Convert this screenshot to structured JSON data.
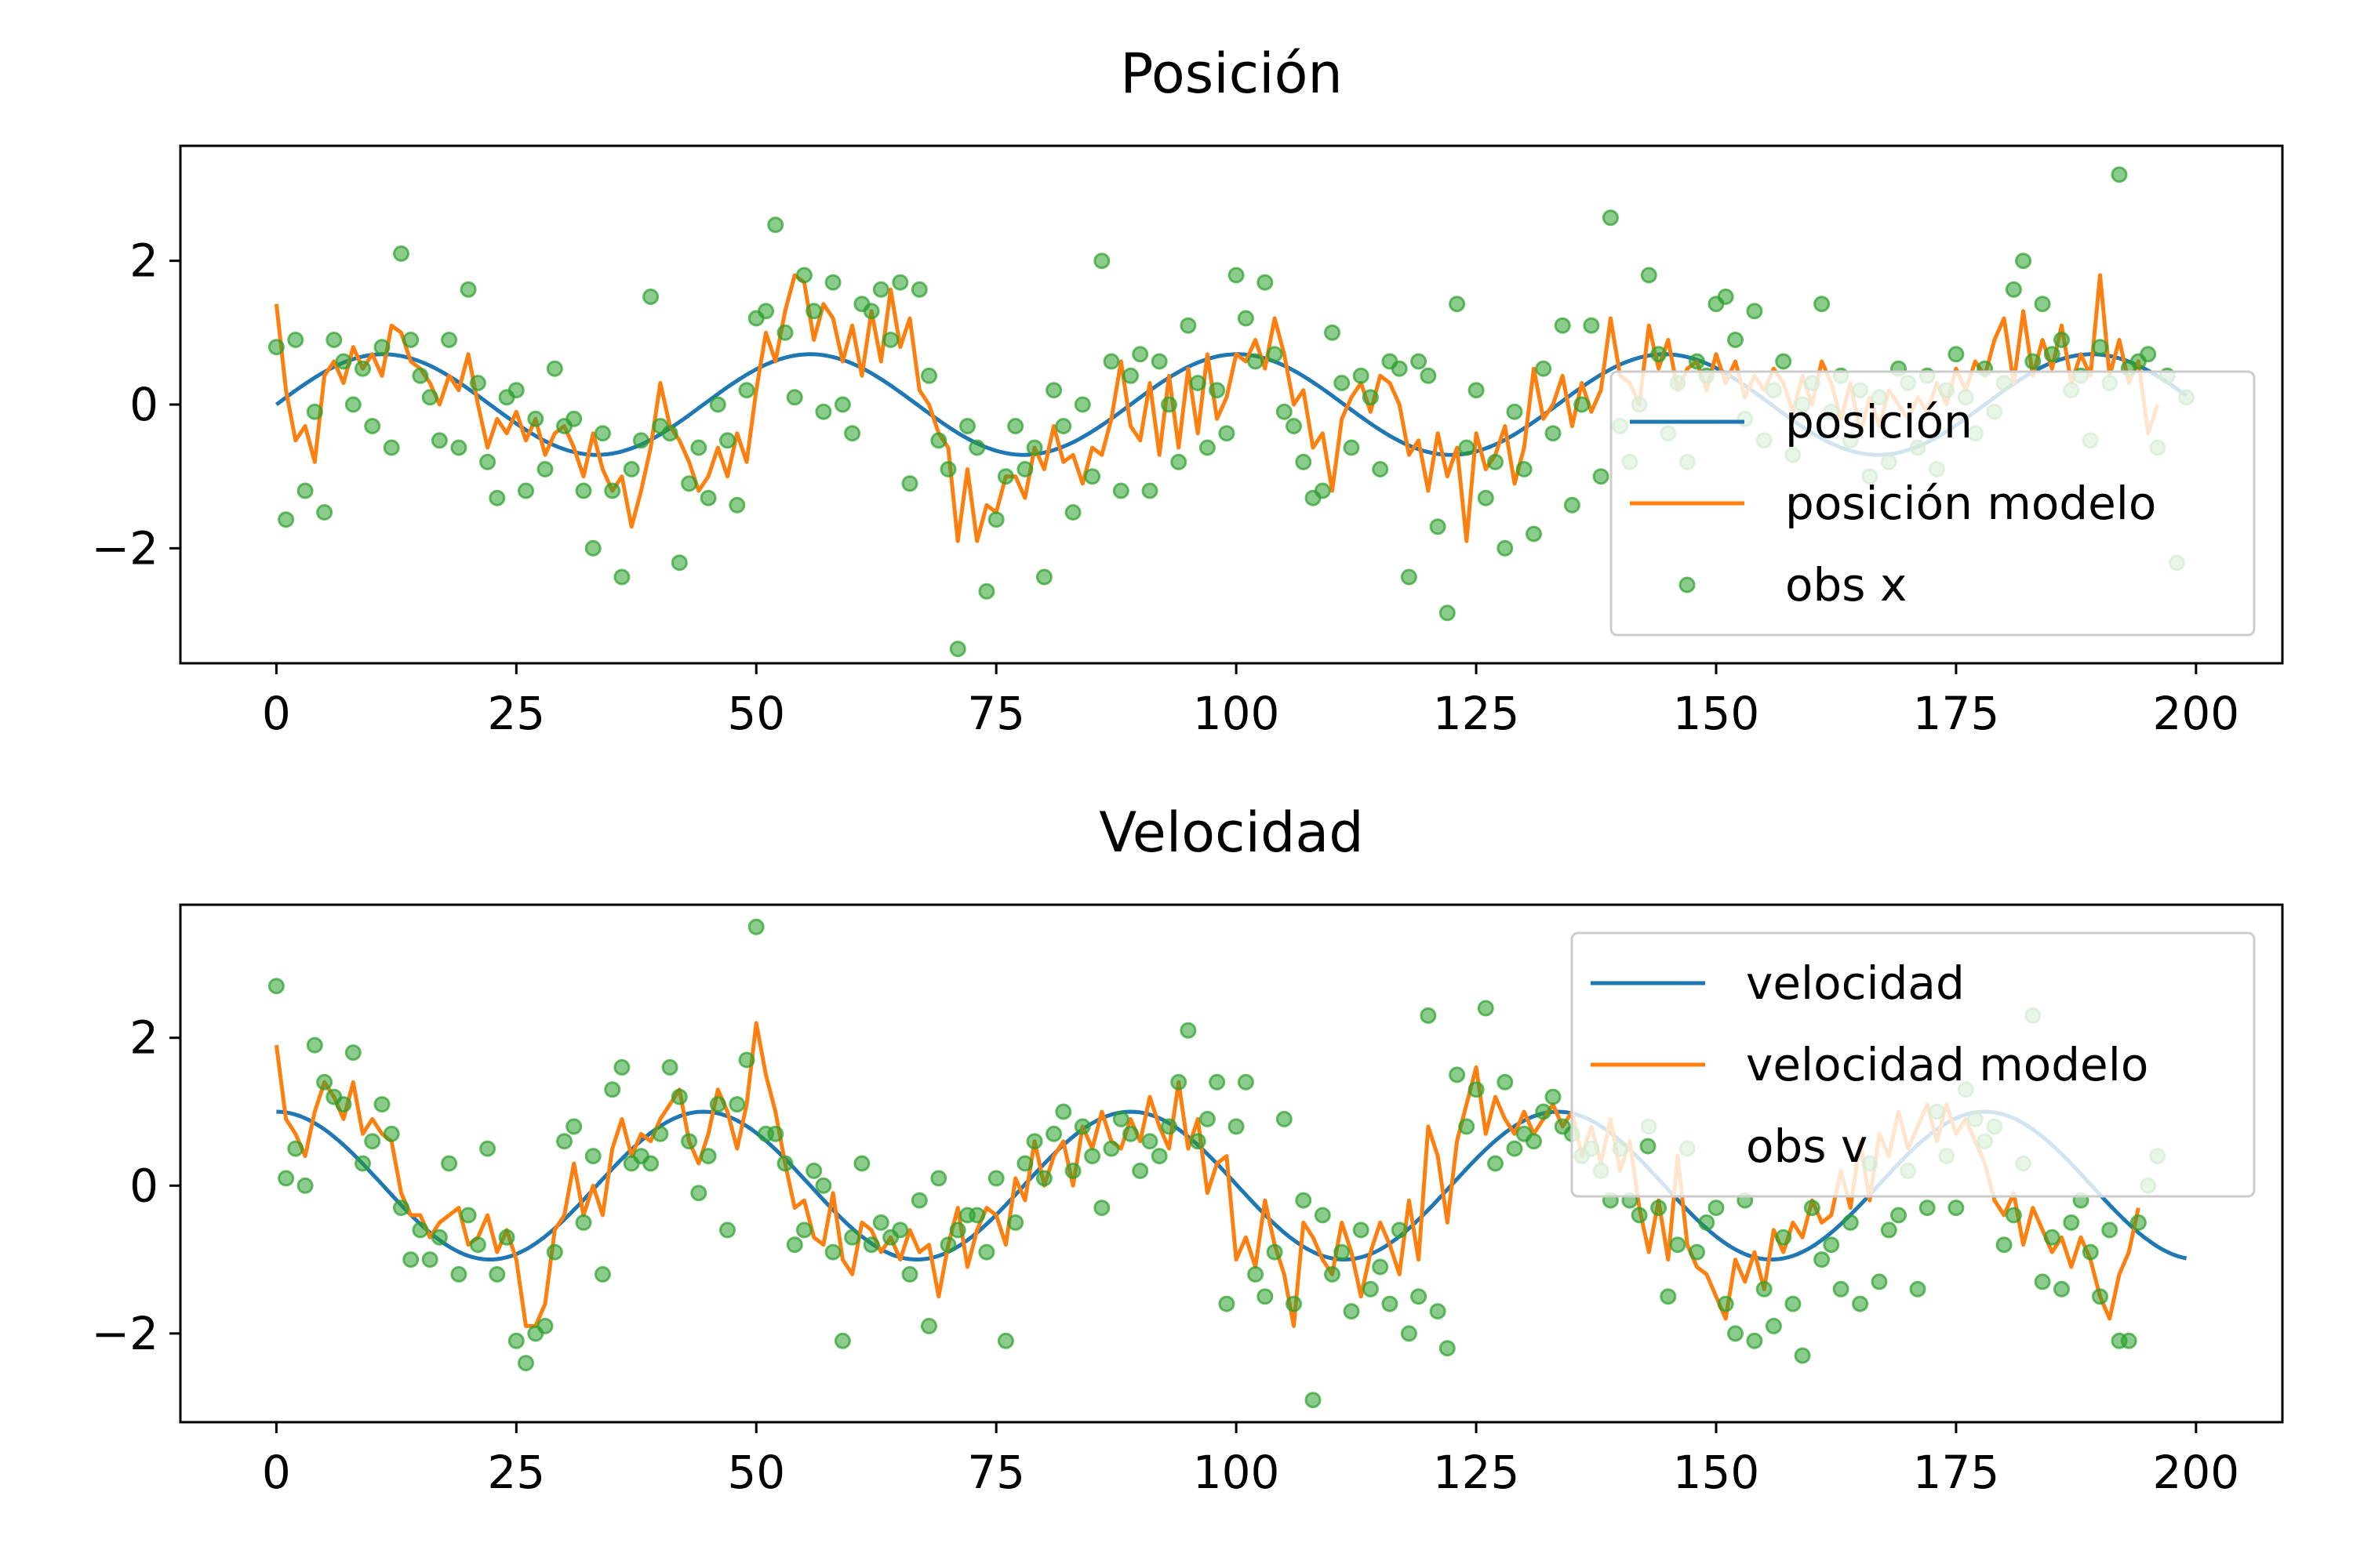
{
  "figure": {
    "background": "#ffffff",
    "colors": {
      "truth": "#1f77b4",
      "model": "#ff7f0e",
      "obs": "#2ca02c"
    }
  },
  "chart_data": [
    {
      "type": "line",
      "title": "Posición",
      "xlabel": "",
      "ylabel": "",
      "xlim": [
        -10,
        209
      ],
      "ylim": [
        -3.6,
        3.6
      ],
      "xticks": [
        0,
        25,
        50,
        75,
        100,
        125,
        150,
        175,
        200
      ],
      "yticks": [
        -2,
        0,
        2
      ],
      "grid": false,
      "legend": {
        "placement": "lower-right",
        "entries": [
          "posición",
          "posición modelo",
          "obs x"
        ]
      },
      "series": [
        {
          "name": "posición",
          "kind": "line",
          "color": "#1f77b4",
          "function": {
            "form": "amplitude*sin(2*pi*(t+phase)/period)",
            "amplitude": 0.7,
            "period": 44.5,
            "phase": 0,
            "t_start": 0,
            "t_end": 199
          }
        },
        {
          "name": "posición modelo",
          "kind": "line",
          "color": "#ff7f0e",
          "x_start": 0,
          "x_step": 1,
          "values": [
            1.4,
            0.2,
            -0.5,
            -0.3,
            -0.8,
            0.4,
            0.6,
            0.3,
            0.8,
            0.5,
            0.7,
            0.4,
            1.1,
            1.0,
            0.6,
            0.5,
            0.3,
            0.0,
            0.4,
            0.2,
            0.7,
            0.0,
            -0.6,
            -0.2,
            -0.4,
            -0.1,
            -0.5,
            -0.2,
            -0.7,
            -0.4,
            -0.3,
            -0.6,
            -1.0,
            -0.4,
            -0.9,
            -1.2,
            -1.0,
            -1.7,
            -1.2,
            -0.6,
            0.3,
            -0.3,
            -0.5,
            -0.8,
            -1.2,
            -1.0,
            -0.6,
            -1.0,
            -0.4,
            -0.8,
            0.2,
            1.0,
            0.6,
            1.3,
            1.8,
            1.7,
            0.9,
            1.4,
            1.2,
            0.6,
            1.1,
            0.4,
            1.3,
            0.6,
            1.6,
            0.8,
            1.2,
            0.2,
            0.0,
            -0.4,
            -0.6,
            -1.9,
            -0.9,
            -1.9,
            -1.4,
            -1.5,
            -1.0,
            -1.0,
            -1.3,
            -0.6,
            -0.9,
            -0.3,
            -0.8,
            -0.7,
            -1.1,
            -0.6,
            -0.7,
            -0.2,
            0.6,
            -0.3,
            -0.5,
            0.3,
            -0.7,
            0.4,
            -0.6,
            0.5,
            -0.4,
            0.7,
            -0.2,
            0.1,
            0.7,
            0.6,
            0.9,
            0.5,
            1.2,
            0.7,
            0.0,
            0.2,
            -0.6,
            -0.4,
            -1.2,
            -0.2,
            0.1,
            0.3,
            -0.1,
            0.4,
            0.3,
            0.0,
            -0.7,
            -0.5,
            -1.2,
            -0.4,
            -1.0,
            -0.6,
            -1.9,
            -0.4,
            -0.9,
            -0.7,
            -0.3,
            -1.1,
            -0.6,
            0.5,
            -0.2,
            0.0,
            0.4,
            -0.3,
            0.3,
            -0.1,
            0.2,
            1.2,
            0.4,
            0.3,
            0.0,
            1.1,
            0.5,
            0.9,
            0.2,
            0.5,
            0.6,
            0.2,
            0.7,
            0.3,
            0.6,
            0.1,
            0.4,
            0.2,
            0.5,
            0.3,
            -0.1,
            0.4,
            0.0,
            0.6,
            0.3,
            -0.2,
            0.3,
            -0.4,
            0.1,
            -0.3,
            0.2,
            0.0,
            -0.2,
            0.1,
            -0.1,
            0.3,
            0.0,
            0.5,
            0.2,
            0.6,
            0.4,
            0.9,
            1.2,
            0.3,
            1.3,
            0.4,
            0.9,
            0.5,
            1.1,
            0.3,
            0.7,
            0.4,
            1.8,
            0.4,
            0.9,
            0.3,
            0.6,
            -0.4,
            0.0
          ]
        },
        {
          "name": "obs x",
          "kind": "scatter",
          "color": "#2ca02c",
          "x_start": 0,
          "x_step": 1,
          "values": [
            0.8,
            -1.6,
            0.9,
            -1.2,
            -0.1,
            -1.5,
            0.9,
            0.6,
            0.0,
            0.5,
            -0.3,
            0.8,
            -0.6,
            2.1,
            0.9,
            0.4,
            0.1,
            -0.5,
            0.9,
            -0.6,
            1.6,
            0.3,
            -0.8,
            -1.3,
            0.1,
            0.2,
            -1.2,
            -0.2,
            -0.9,
            0.5,
            -0.3,
            -0.2,
            -1.2,
            -2.0,
            -0.4,
            -1.2,
            -2.4,
            -0.9,
            -0.5,
            1.5,
            -0.3,
            -0.4,
            -2.2,
            -1.1,
            -0.6,
            -1.3,
            0.0,
            -0.5,
            -1.4,
            0.2,
            1.2,
            1.3,
            2.5,
            1.0,
            0.1,
            1.8,
            1.3,
            -0.1,
            1.7,
            0.0,
            -0.4,
            1.4,
            1.3,
            1.6,
            0.9,
            1.7,
            -1.1,
            1.6,
            0.4,
            -0.5,
            -0.9,
            -3.4,
            -0.3,
            -0.6,
            -2.6,
            -1.6,
            -1.0,
            -0.3,
            -0.9,
            -0.6,
            -2.4,
            0.2,
            -0.3,
            -1.5,
            0.0,
            -1.0,
            2.0,
            0.6,
            -1.2,
            0.4,
            0.7,
            -1.2,
            0.6,
            0.0,
            -0.8,
            1.1,
            0.3,
            -0.6,
            0.2,
            -0.4,
            1.8,
            1.2,
            0.6,
            1.7,
            0.7,
            -0.1,
            -0.3,
            -0.8,
            -1.3,
            -1.2,
            1.0,
            0.3,
            -0.6,
            0.4,
            0.1,
            -0.9,
            0.6,
            0.5,
            -2.4,
            0.6,
            0.4,
            -1.7,
            -2.9,
            1.4,
            -0.6,
            0.2,
            -1.3,
            -0.8,
            -2.0,
            -0.1,
            -0.9,
            -1.8,
            0.5,
            -0.4,
            1.1,
            -1.4,
            0.0,
            1.1,
            -1.0,
            2.6,
            -0.3,
            -0.8,
            0.0,
            1.8,
            0.7,
            -0.4,
            0.3,
            -0.8,
            0.6,
            0.4,
            1.4,
            1.5,
            0.9,
            -0.2,
            1.3,
            -0.5,
            0.2,
            0.6,
            -0.7,
            0.0,
            0.3,
            1.4,
            -0.1,
            0.4,
            -0.5,
            0.2,
            -1.0,
            0.1,
            -0.8,
            0.5,
            0.3,
            -0.6,
            0.4,
            -0.9,
            0.2,
            0.7,
            0.1,
            -0.4,
            0.5,
            -0.1,
            0.3,
            1.6,
            2.0,
            0.6,
            1.4,
            0.7,
            0.9,
            0.2,
            0.4,
            -0.5,
            0.8,
            0.3,
            3.2,
            0.5,
            0.6,
            0.7,
            -0.6,
            0.4,
            -2.2,
            0.1
          ]
        }
      ]
    },
    {
      "type": "line",
      "title": "Velocidad",
      "xlabel": "",
      "ylabel": "",
      "xlim": [
        -10,
        209
      ],
      "ylim": [
        -3.2,
        3.8
      ],
      "xticks": [
        0,
        25,
        50,
        75,
        100,
        125,
        150,
        175,
        200
      ],
      "yticks": [
        -2,
        0,
        2
      ],
      "grid": false,
      "legend": {
        "placement": "upper-right",
        "entries": [
          "velocidad",
          "velocidad modelo",
          "obs v"
        ]
      },
      "series": [
        {
          "name": "velocidad",
          "kind": "line",
          "color": "#1f77b4",
          "function": {
            "form": "amplitude*cos(2*pi*(t+phase)/period)",
            "amplitude": 1.0,
            "period": 44.5,
            "phase": 0,
            "t_start": 0,
            "t_end": 199
          }
        },
        {
          "name": "velocidad modelo",
          "kind": "line",
          "color": "#ff7f0e",
          "x_start": 0,
          "x_step": 1,
          "values": [
            1.9,
            0.9,
            0.7,
            0.4,
            1.0,
            1.4,
            1.2,
            0.9,
            1.4,
            0.7,
            0.9,
            0.7,
            0.6,
            -0.1,
            -0.4,
            -0.4,
            -0.7,
            -0.5,
            -0.4,
            -0.3,
            -0.8,
            -0.7,
            -0.4,
            -0.9,
            -0.6,
            -1.0,
            -1.9,
            -1.9,
            -1.6,
            -0.6,
            -0.4,
            0.3,
            -0.4,
            0.0,
            -0.4,
            0.5,
            0.9,
            0.4,
            0.7,
            0.6,
            0.9,
            1.1,
            1.3,
            0.6,
            0.3,
            0.7,
            1.3,
            1.0,
            0.5,
            1.1,
            2.2,
            1.5,
            1.0,
            0.3,
            -0.3,
            -0.2,
            -0.7,
            -0.8,
            -0.1,
            -1.0,
            -1.2,
            -0.5,
            -0.6,
            -0.9,
            -0.7,
            -1.0,
            -0.6,
            -0.9,
            -0.8,
            -1.5,
            -0.8,
            -0.3,
            -1.1,
            -0.6,
            -0.3,
            -0.4,
            -0.8,
            0.1,
            -0.2,
            0.6,
            0.0,
            0.4,
            0.6,
            0.0,
            0.8,
            0.5,
            1.0,
            0.6,
            0.5,
            0.9,
            0.6,
            1.2,
            0.8,
            0.5,
            1.4,
            0.5,
            0.9,
            -0.1,
            0.3,
            0.4,
            -1.0,
            -0.7,
            -1.1,
            -0.2,
            -0.8,
            -1.2,
            -1.9,
            -0.5,
            -0.7,
            -1.0,
            -1.2,
            -0.5,
            -0.9,
            -1.5,
            -0.9,
            -0.5,
            -0.8,
            -1.2,
            -0.2,
            -1.0,
            0.8,
            0.4,
            -0.5,
            0.6,
            1.1,
            1.6,
            0.7,
            1.2,
            0.9,
            0.7,
            1.0,
            0.7,
            0.9,
            1.1,
            0.8,
            1.0,
            0.4,
            0.8,
            0.3,
            0.9,
            0.2,
            0.6,
            -0.3,
            -0.9,
            -0.2,
            -1.0,
            0.4,
            -0.8,
            -1.1,
            -1.2,
            -1.5,
            -1.8,
            -1.0,
            -1.3,
            -0.9,
            -1.4,
            -0.6,
            -0.9,
            -0.5,
            -0.7,
            -0.2,
            -0.5,
            -0.4,
            0.2,
            -0.3,
            0.6,
            -0.2,
            0.7,
            0.4,
            1.0,
            0.5,
            0.8,
            1.1,
            0.6,
            1.1,
            0.7,
            0.9,
            0.6,
            0.3,
            -0.2,
            -0.4,
            -0.1,
            -0.8,
            -0.3,
            -0.6,
            -0.9,
            -0.7,
            -1.1,
            -0.7,
            -1.0,
            -1.5,
            -1.8,
            -1.2,
            -0.9,
            -0.3
          ]
        },
        {
          "name": "obs v",
          "kind": "scatter",
          "color": "#2ca02c",
          "x_start": 0,
          "x_step": 1,
          "values": [
            2.7,
            0.1,
            0.5,
            0.0,
            1.9,
            1.4,
            1.2,
            1.1,
            1.8,
            0.3,
            0.6,
            1.1,
            0.7,
            -0.3,
            -1.0,
            -0.6,
            -1.0,
            -0.7,
            0.3,
            -1.2,
            -0.4,
            -0.8,
            0.5,
            -1.2,
            -0.7,
            -2.1,
            -2.4,
            -2.0,
            -1.9,
            -0.9,
            0.6,
            0.8,
            -0.5,
            0.4,
            -1.2,
            1.3,
            1.6,
            0.3,
            0.4,
            0.3,
            0.7,
            1.6,
            1.2,
            0.6,
            -0.1,
            0.4,
            1.1,
            -0.6,
            1.1,
            1.7,
            3.5,
            0.7,
            0.7,
            0.3,
            -0.8,
            -0.6,
            0.2,
            0.0,
            -0.9,
            -2.1,
            -0.7,
            0.3,
            -0.8,
            -0.5,
            -0.7,
            -0.6,
            -1.2,
            -0.2,
            -1.9,
            0.1,
            -0.8,
            -0.6,
            -0.4,
            -0.4,
            -0.9,
            0.1,
            -2.1,
            -0.5,
            0.3,
            0.6,
            0.1,
            0.7,
            1.0,
            0.2,
            0.8,
            0.4,
            -0.3,
            0.5,
            0.9,
            0.7,
            0.2,
            0.6,
            0.4,
            0.8,
            1.4,
            2.1,
            0.6,
            0.9,
            1.4,
            -1.6,
            0.8,
            1.4,
            -1.2,
            -1.5,
            -0.9,
            0.9,
            -1.6,
            -0.2,
            -2.9,
            -0.4,
            -1.2,
            -0.9,
            -1.7,
            -0.6,
            -1.4,
            -1.1,
            -1.6,
            -0.6,
            -2.0,
            -1.5,
            2.3,
            -1.7,
            -2.2,
            1.5,
            0.8,
            1.3,
            2.4,
            0.3,
            1.4,
            0.5,
            0.7,
            0.6,
            1.0,
            1.2,
            0.8,
            0.7,
            0.4,
            0.5,
            0.2,
            -0.2,
            0.5,
            -0.2,
            -0.4,
            0.8,
            -0.3,
            -1.5,
            -0.8,
            0.5,
            -0.9,
            -0.5,
            -0.3,
            -1.6,
            -2.0,
            -0.2,
            -2.1,
            -1.4,
            -1.9,
            -0.7,
            -1.6,
            -2.3,
            -0.3,
            -1.0,
            -0.8,
            -1.4,
            -0.5,
            -1.6,
            0.3,
            -1.3,
            -0.6,
            -0.4,
            0.2,
            -1.4,
            -0.3,
            1.0,
            0.4,
            -0.3,
            1.3,
            0.9,
            0.6,
            0.8,
            -0.8,
            -0.4,
            0.3,
            2.3,
            -1.3,
            -0.7,
            -1.4,
            -0.5,
            -0.2,
            -0.9,
            -1.5,
            -0.6,
            -2.1,
            -2.1,
            -0.5,
            0.0,
            0.4
          ]
        }
      ]
    }
  ]
}
